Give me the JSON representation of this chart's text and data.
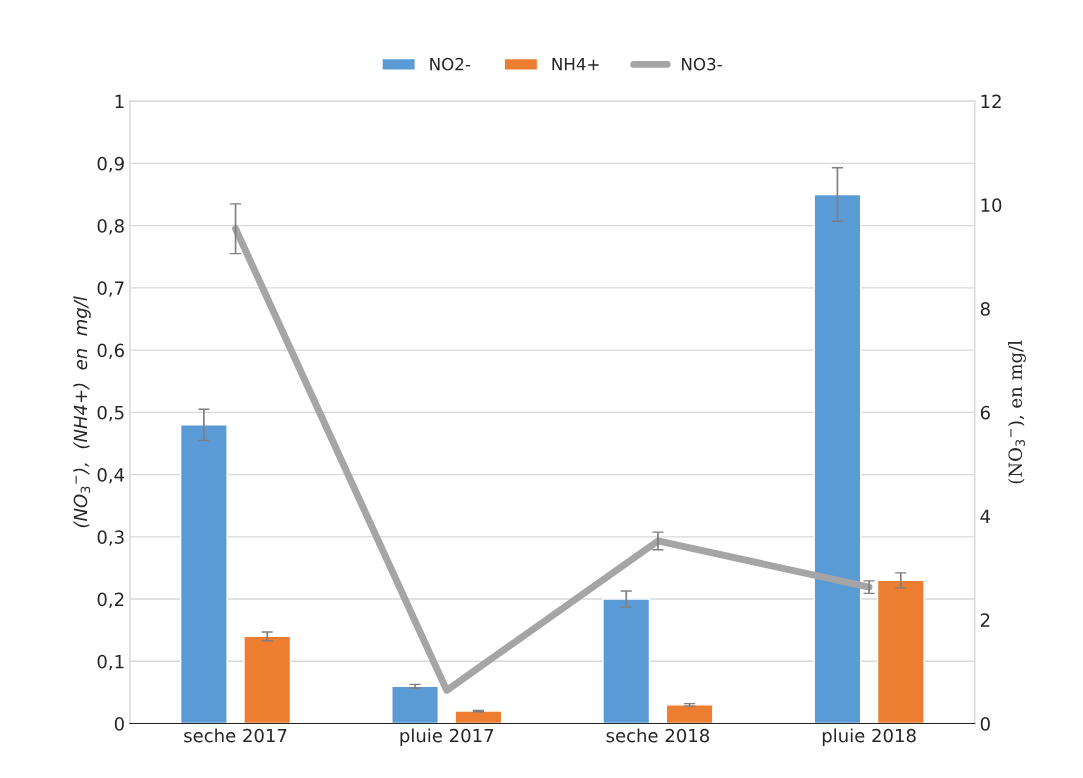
{
  "chart_data": {
    "type": "bar",
    "categories": [
      "seche 2017",
      "pluie 2017",
      "seche 2018",
      "pluie 2018"
    ],
    "ylabel": "(NO$_{3}$$^{−}$),  (NH4+)  en  mg/l",
    "y2label": "(NO$_{3}$$^{−}$), en mg/l",
    "ylim": [
      0,
      1
    ],
    "yticks": [
      {
        "value": 0,
        "label": "0"
      },
      {
        "value": 0.1,
        "label": "0,1"
      },
      {
        "value": 0.2,
        "label": "0,2"
      },
      {
        "value": 0.3,
        "label": "0,3"
      },
      {
        "value": 0.4,
        "label": "0,4"
      },
      {
        "value": 0.5,
        "label": "0,5"
      },
      {
        "value": 0.6,
        "label": "0,6"
      },
      {
        "value": 0.7,
        "label": "0,7"
      },
      {
        "value": 0.8,
        "label": "0,8"
      },
      {
        "value": 0.9,
        "label": "0,9"
      },
      {
        "value": 1,
        "label": "1"
      }
    ],
    "y2lim": [
      0,
      12
    ],
    "y2ticks": [
      0,
      2,
      4,
      6,
      8,
      10,
      12
    ],
    "series": [
      {
        "name": "NO2-",
        "color": "#5b9bd5",
        "values": [
          0.48,
          0.06,
          0.2,
          0.85
        ],
        "errors": [
          0.025,
          0.003,
          0.013,
          0.043
        ]
      },
      {
        "name": "NH4+",
        "color": "#ed7d31",
        "values": [
          0.14,
          0.02,
          0.03,
          0.23
        ],
        "errors": [
          0.007,
          0.001,
          0.002,
          0.012
        ]
      },
      {
        "name": "NO3-",
        "type": "line",
        "axis": "y2",
        "color": "#a5a5a5",
        "values": [
          9.54,
          0.64,
          3.52,
          2.63
        ],
        "errors": [
          0.48,
          null,
          0.17,
          0.12
        ],
        "marker": "none",
        "line_style": "solid"
      }
    ],
    "grid": "y",
    "legend": "top"
  }
}
